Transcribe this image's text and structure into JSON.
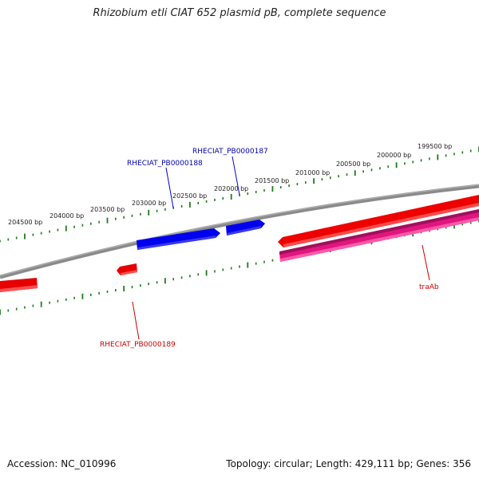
{
  "title": "Rhizobium etli CIAT 652 plasmid pB, complete sequence",
  "footer": {
    "accession": "Accession: NC_010996",
    "summary": "Topology: circular; Length: 429,111 bp; Genes: 356"
  },
  "colors": {
    "backbone": "#7f7f7f",
    "tick": "#1e7b1e",
    "forward_gene": "#0000ee",
    "reverse_gene": "#ee0000",
    "cds_pink": "#ee2288",
    "forward_label": "#0000aa",
    "reverse_label": "#cc0000"
  },
  "ruler": {
    "labels": [
      "199500 bp",
      "200000 bp",
      "200500 bp",
      "201000 bp",
      "201500 bp",
      "202000 bp",
      "202500 bp",
      "203000 bp",
      "203500 bp",
      "204000 bp",
      "204500 bp"
    ]
  },
  "genes": [
    {
      "name": "RHECIAT_PB0000187",
      "strand": "forward",
      "labelled": true
    },
    {
      "name": "RHECIAT_PB0000188",
      "strand": "forward",
      "labelled": true
    },
    {
      "name": "RHECIAT_PB0000189",
      "strand": "reverse",
      "labelled": true
    },
    {
      "name": "traAb",
      "strand": "reverse",
      "labelled": true
    }
  ]
}
